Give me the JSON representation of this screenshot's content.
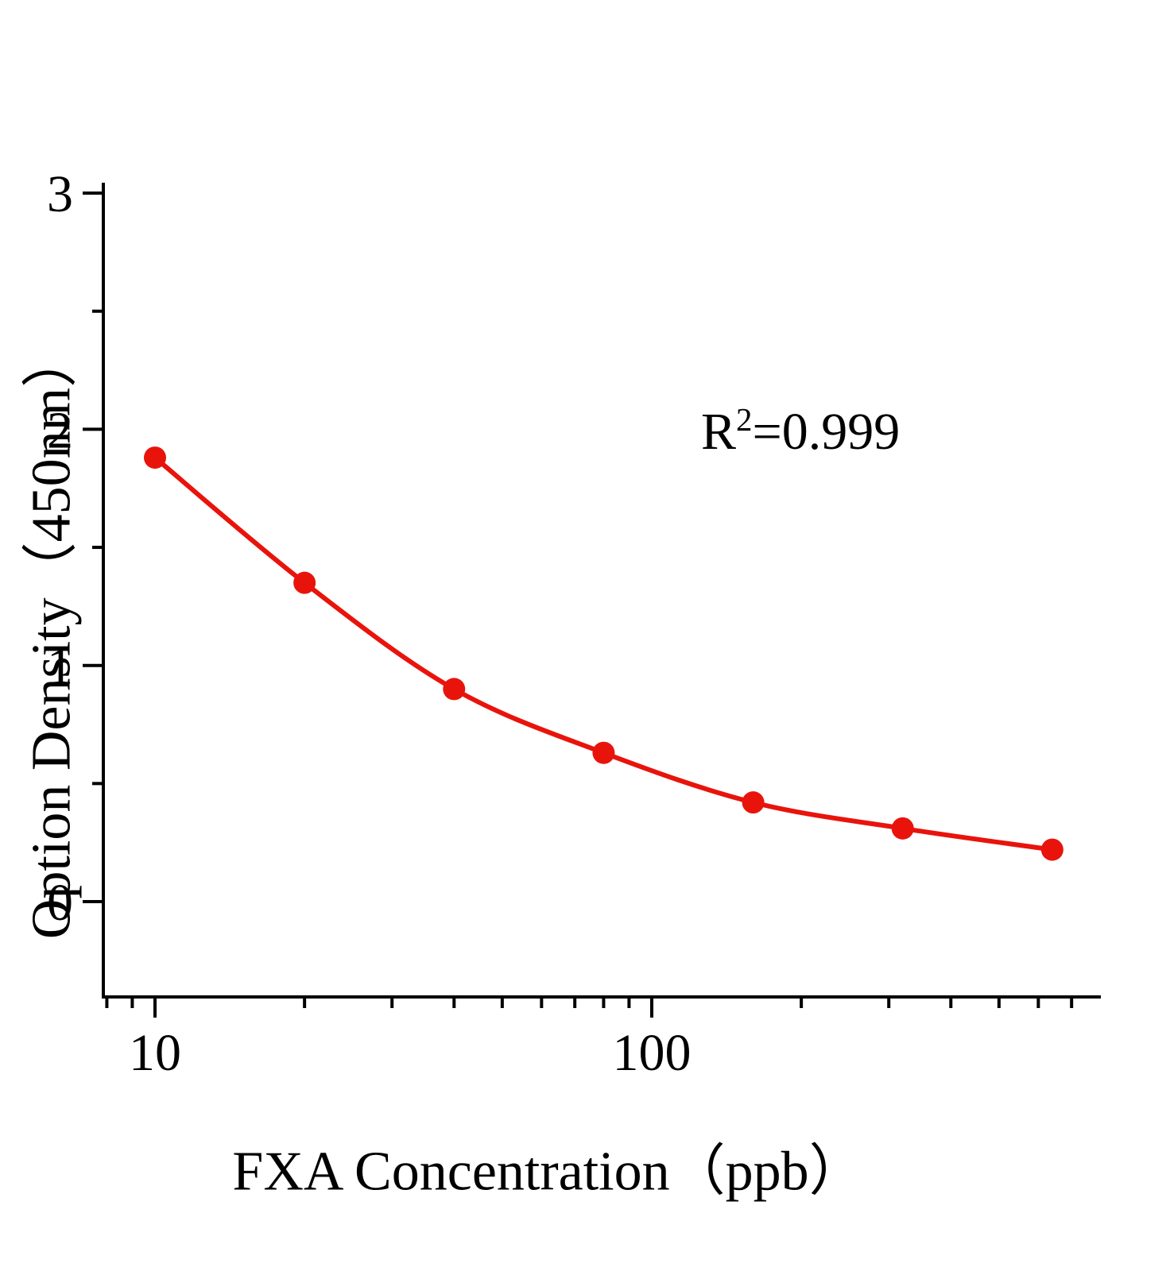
{
  "chart_data": {
    "type": "scatter",
    "title": "",
    "xlabel": "FXA Concentration（ppb）",
    "ylabel": "Option Density（450nm）",
    "x_scale": "log",
    "x": [
      10,
      20,
      40,
      80,
      160,
      320,
      640
    ],
    "y": [
      1.88,
      1.35,
      0.9,
      0.63,
      0.42,
      0.31,
      0.22
    ],
    "x_ticks": [
      10,
      100
    ],
    "x_tick_labels": [
      "10",
      "100"
    ],
    "x_minor_ticks": [
      8,
      9,
      20,
      30,
      40,
      50,
      60,
      70,
      80,
      90,
      200,
      300,
      400,
      500,
      600,
      700
    ],
    "y_ticks": [
      0,
      1,
      2,
      3
    ],
    "y_tick_labels": [
      "0",
      "1",
      "2",
      "3"
    ],
    "y_minor_ticks": [
      0.5,
      1.5,
      2.5
    ],
    "xlim": [
      7.9,
      790
    ],
    "ylim": [
      -0.4,
      3
    ],
    "grid": false,
    "legend": "none",
    "series_color": "#e8140c",
    "axis_color": "#000000",
    "annotation": "R²=0.999"
  },
  "annotation": {
    "base": "R",
    "sup": "2",
    "rest": "=0.999"
  }
}
